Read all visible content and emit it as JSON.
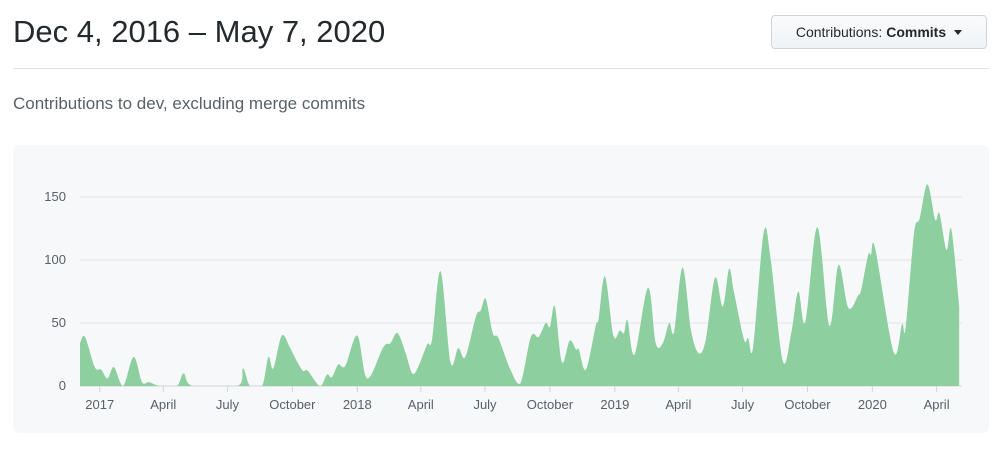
{
  "header": {
    "title": "Dec 4, 2016 – May 7, 2020",
    "dropdown_prefix": "Contributions:",
    "dropdown_value": "Commits"
  },
  "subtitle": "Contributions to dev, excluding merge commits",
  "colors": {
    "fill": "#8dcf9e",
    "background": "#f6f8fa",
    "grid": "#e1e4e8"
  },
  "chart_data": {
    "type": "area",
    "title": "",
    "xlabel": "",
    "ylabel": "",
    "xlim": [
      "2016-12-04",
      "2020-05-07"
    ],
    "ylim": [
      0,
      160
    ],
    "grid": true,
    "y_ticks": [
      0,
      50,
      100,
      150
    ],
    "x_ticks": [
      {
        "date": "2017-01-01",
        "label": "2017"
      },
      {
        "date": "2017-04-01",
        "label": "April"
      },
      {
        "date": "2017-07-01",
        "label": "July"
      },
      {
        "date": "2017-10-01",
        "label": "October"
      },
      {
        "date": "2018-01-01",
        "label": "2018"
      },
      {
        "date": "2018-04-01",
        "label": "April"
      },
      {
        "date": "2018-07-01",
        "label": "July"
      },
      {
        "date": "2018-10-01",
        "label": "October"
      },
      {
        "date": "2019-01-01",
        "label": "2019"
      },
      {
        "date": "2019-04-01",
        "label": "April"
      },
      {
        "date": "2019-07-01",
        "label": "July"
      },
      {
        "date": "2019-10-01",
        "label": "October"
      },
      {
        "date": "2020-01-01",
        "label": "2020"
      },
      {
        "date": "2020-04-01",
        "label": "April"
      }
    ],
    "points": [
      [
        "2016-12-04",
        34
      ],
      [
        "2016-12-11",
        39
      ],
      [
        "2016-12-25",
        15
      ],
      [
        "2017-01-03",
        13
      ],
      [
        "2017-01-12",
        6
      ],
      [
        "2017-01-21",
        15
      ],
      [
        "2017-02-03",
        0
      ],
      [
        "2017-02-18",
        23
      ],
      [
        "2017-03-02",
        3
      ],
      [
        "2017-03-12",
        3
      ],
      [
        "2017-03-27",
        0
      ],
      [
        "2017-04-20",
        0
      ],
      [
        "2017-04-30",
        10
      ],
      [
        "2017-05-13",
        0
      ],
      [
        "2017-07-15",
        0
      ],
      [
        "2017-07-23",
        14
      ],
      [
        "2017-08-02",
        0
      ],
      [
        "2017-08-19",
        0
      ],
      [
        "2017-08-28",
        23
      ],
      [
        "2017-09-04",
        14
      ],
      [
        "2017-09-16",
        40
      ],
      [
        "2017-09-28",
        30
      ],
      [
        "2017-10-08",
        19
      ],
      [
        "2017-10-16",
        12
      ],
      [
        "2017-10-23",
        12
      ],
      [
        "2017-11-09",
        0
      ],
      [
        "2017-11-19",
        9
      ],
      [
        "2017-11-26",
        7
      ],
      [
        "2017-12-05",
        17
      ],
      [
        "2017-12-15",
        16
      ],
      [
        "2018-01-01",
        40
      ],
      [
        "2018-01-15",
        6
      ],
      [
        "2018-02-07",
        31
      ],
      [
        "2018-02-17",
        34
      ],
      [
        "2018-02-27",
        42
      ],
      [
        "2018-03-10",
        27
      ],
      [
        "2018-03-20",
        10
      ],
      [
        "2018-03-29",
        16
      ],
      [
        "2018-04-10",
        33
      ],
      [
        "2018-04-17",
        37
      ],
      [
        "2018-04-29",
        91
      ],
      [
        "2018-05-13",
        19
      ],
      [
        "2018-05-24",
        30
      ],
      [
        "2018-06-03",
        23
      ],
      [
        "2018-06-18",
        55
      ],
      [
        "2018-06-25",
        60
      ],
      [
        "2018-07-02",
        69
      ],
      [
        "2018-07-12",
        42
      ],
      [
        "2018-07-20",
        38
      ],
      [
        "2018-08-06",
        13
      ],
      [
        "2018-08-20",
        2
      ],
      [
        "2018-09-04",
        39
      ],
      [
        "2018-09-15",
        39
      ],
      [
        "2018-09-25",
        50
      ],
      [
        "2018-10-01",
        47
      ],
      [
        "2018-10-08",
        63
      ],
      [
        "2018-10-18",
        19
      ],
      [
        "2018-10-29",
        36
      ],
      [
        "2018-11-07",
        29
      ],
      [
        "2018-11-11",
        29
      ],
      [
        "2018-11-21",
        13
      ],
      [
        "2018-12-05",
        48
      ],
      [
        "2018-12-09",
        53
      ],
      [
        "2018-12-18",
        87
      ],
      [
        "2018-12-30",
        40
      ],
      [
        "2019-01-08",
        44
      ],
      [
        "2019-01-14",
        42
      ],
      [
        "2019-01-19",
        52
      ],
      [
        "2019-01-29",
        25
      ],
      [
        "2019-02-17",
        78
      ],
      [
        "2019-02-28",
        34
      ],
      [
        "2019-03-10",
        34
      ],
      [
        "2019-03-19",
        50
      ],
      [
        "2019-03-26",
        43
      ],
      [
        "2019-04-07",
        94
      ],
      [
        "2019-04-19",
        44
      ],
      [
        "2019-04-30",
        26
      ],
      [
        "2019-05-10",
        37
      ],
      [
        "2019-05-23",
        86
      ],
      [
        "2019-06-03",
        63
      ],
      [
        "2019-06-12",
        93
      ],
      [
        "2019-06-19",
        74
      ],
      [
        "2019-07-03",
        37
      ],
      [
        "2019-07-09",
        38
      ],
      [
        "2019-07-16",
        31
      ],
      [
        "2019-07-31",
        122
      ],
      [
        "2019-08-10",
        100
      ],
      [
        "2019-08-27",
        20
      ],
      [
        "2019-09-08",
        42
      ],
      [
        "2019-09-18",
        75
      ],
      [
        "2019-09-28",
        51
      ],
      [
        "2019-10-15",
        126
      ],
      [
        "2019-11-01",
        48
      ],
      [
        "2019-11-14",
        96
      ],
      [
        "2019-11-28",
        62
      ],
      [
        "2019-12-12",
        72
      ],
      [
        "2019-12-16",
        76
      ],
      [
        "2019-12-26",
        104
      ],
      [
        "2019-12-30",
        104
      ],
      [
        "2020-01-05",
        109
      ],
      [
        "2020-01-31",
        27
      ],
      [
        "2020-02-12",
        49
      ],
      [
        "2020-02-17",
        46
      ],
      [
        "2020-02-29",
        121
      ],
      [
        "2020-03-08",
        133
      ],
      [
        "2020-03-19",
        160
      ],
      [
        "2020-03-30",
        132
      ],
      [
        "2020-04-05",
        137
      ],
      [
        "2020-04-15",
        108
      ],
      [
        "2020-04-22",
        124
      ],
      [
        "2020-05-03",
        63
      ]
    ]
  }
}
